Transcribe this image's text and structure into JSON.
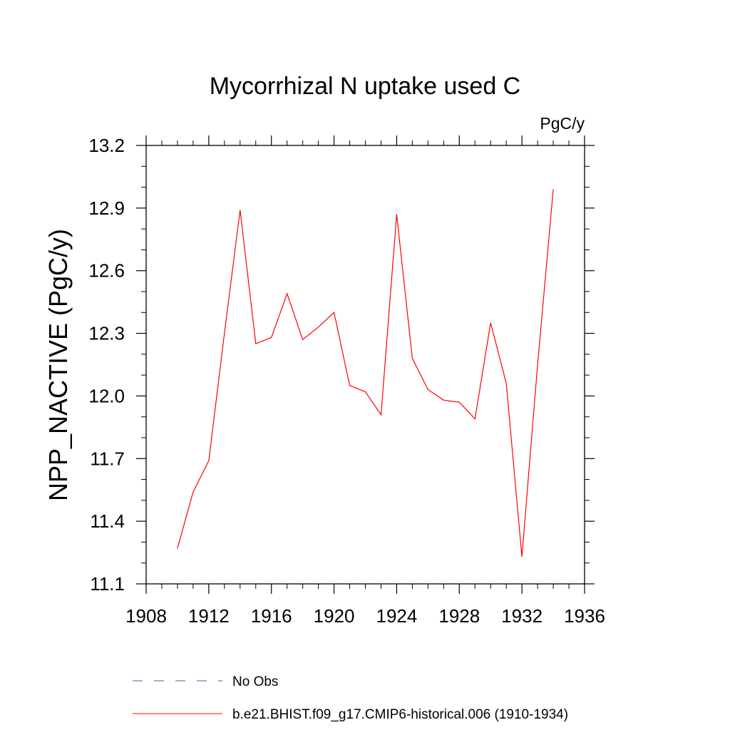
{
  "chart_data": {
    "type": "line",
    "title": "Mycorrhizal N uptake used C",
    "units_label": "PgC/y",
    "ylabel": "NPP_NACTIVE  (PgC/y)",
    "xlabel": "",
    "xlim": [
      1908,
      1936
    ],
    "ylim": [
      11.1,
      13.2
    ],
    "xticks": [
      1908,
      1912,
      1916,
      1920,
      1924,
      1928,
      1932,
      1936
    ],
    "xtick_labels": [
      "1908",
      "1912",
      "1916",
      "1920",
      "1924",
      "1928",
      "1932",
      "1936"
    ],
    "yticks": [
      11.1,
      11.4,
      11.7,
      12.0,
      12.3,
      12.6,
      12.9,
      13.2
    ],
    "ytick_labels": [
      "11.1",
      "11.4",
      "11.7",
      "12.0",
      "12.3",
      "12.6",
      "12.9",
      "13.2"
    ],
    "grid": false,
    "legend_position": "bottom",
    "series": [
      {
        "name": "b.e21.BHIST.f09_g17.CMIP6-historical.006 (1910-1934)",
        "color": "#ff0000",
        "style": "solid",
        "x": [
          1910,
          1911,
          1912,
          1913,
          1914,
          1915,
          1916,
          1917,
          1918,
          1919,
          1920,
          1921,
          1922,
          1923,
          1924,
          1925,
          1926,
          1927,
          1928,
          1929,
          1930,
          1931,
          1932,
          1933,
          1934
        ],
        "values": [
          11.27,
          11.54,
          11.69,
          12.3,
          12.89,
          12.25,
          12.28,
          12.49,
          12.27,
          12.33,
          12.4,
          12.05,
          12.02,
          11.91,
          12.87,
          12.18,
          12.03,
          11.98,
          11.97,
          11.89,
          12.35,
          12.06,
          11.23,
          12.15,
          12.99
        ]
      }
    ],
    "legend": [
      {
        "label": "No Obs",
        "color": "#5a50a8",
        "style": "dashed"
      },
      {
        "label": "b.e21.BHIST.f09_g17.CMIP6-historical.006 (1910-1934)",
        "color": "#ff0000",
        "style": "solid"
      }
    ]
  }
}
